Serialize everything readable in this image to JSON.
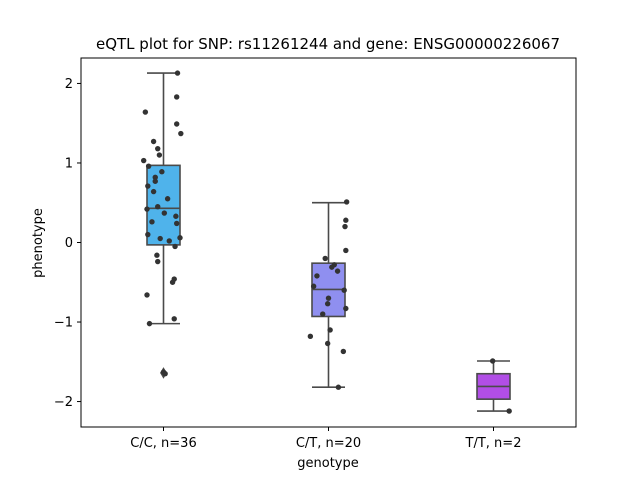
{
  "chart_data": {
    "type": "box",
    "title": "eQTL plot for SNP: rs11261244 and gene: ENSG00000226067",
    "xlabel": "genotype",
    "ylabel": "phenotype",
    "ylim": [
      -2.32,
      2.32
    ],
    "yticks": [
      2,
      1,
      0,
      -1,
      -2
    ],
    "ytick_labels": [
      "2",
      "1",
      "0",
      "−1",
      "−2"
    ],
    "grid": false,
    "categories": [
      "C/C, n=36",
      "C/T, n=20",
      "T/T, n=2"
    ],
    "colors": {
      "box_fills": [
        "#4fb3eb",
        "#8f8ff0",
        "#b14ee6"
      ],
      "box_edge": "#4a4a4a",
      "points": "#333333"
    },
    "boxes": [
      {
        "category": "C/C, n=36",
        "whisker_low": -1.02,
        "q1": -0.03,
        "median": 0.43,
        "q3": 0.97,
        "whisker_high": 2.13,
        "outliers": [
          -1.64
        ]
      },
      {
        "category": "C/T, n=20",
        "whisker_low": -1.82,
        "q1": -0.93,
        "median": -0.59,
        "q3": -0.26,
        "whisker_high": 0.5,
        "outliers": []
      },
      {
        "category": "T/T, n=2",
        "whisker_low": -2.12,
        "q1": -1.97,
        "median": -1.81,
        "q3": -1.65,
        "whisker_high": -1.49,
        "outliers": []
      }
    ],
    "points": [
      [
        [
          0.17,
          2.13
        ],
        [
          -0.22,
          1.64
        ],
        [
          0.16,
          1.83
        ],
        [
          0.16,
          1.49
        ],
        [
          0.21,
          1.37
        ],
        [
          -0.12,
          1.27
        ],
        [
          -0.07,
          1.18
        ],
        [
          -0.05,
          1.1
        ],
        [
          -0.24,
          1.03
        ],
        [
          -0.18,
          0.96
        ],
        [
          -0.02,
          0.89
        ],
        [
          -0.1,
          0.82
        ],
        [
          -0.1,
          0.77
        ],
        [
          -0.19,
          0.71
        ],
        [
          -0.12,
          0.64
        ],
        [
          0.05,
          0.55
        ],
        [
          -0.07,
          0.45
        ],
        [
          -0.2,
          0.42
        ],
        [
          0.01,
          0.37
        ],
        [
          0.15,
          0.33
        ],
        [
          -0.14,
          0.26
        ],
        [
          0.16,
          0.24
        ],
        [
          -0.19,
          0.1
        ],
        [
          0.2,
          0.06
        ],
        [
          -0.04,
          0.05
        ],
        [
          0.07,
          0.02
        ],
        [
          0.14,
          -0.05
        ],
        [
          -0.08,
          -0.16
        ],
        [
          -0.07,
          -0.24
        ],
        [
          0.13,
          -0.46
        ],
        [
          0.11,
          -0.5
        ],
        [
          -0.2,
          -0.66
        ],
        [
          0.13,
          -0.96
        ],
        [
          -0.17,
          -1.02
        ],
        [
          0.0,
          -1.63
        ],
        [
          0.02,
          -1.65
        ]
      ],
      [
        [
          0.22,
          0.51
        ],
        [
          0.21,
          0.28
        ],
        [
          0.2,
          0.2
        ],
        [
          0.21,
          -0.1
        ],
        [
          -0.04,
          -0.2
        ],
        [
          0.07,
          -0.28
        ],
        [
          0.04,
          -0.31
        ],
        [
          0.11,
          -0.36
        ],
        [
          -0.14,
          -0.42
        ],
        [
          -0.18,
          -0.55
        ],
        [
          0.19,
          -0.6
        ],
        [
          0.0,
          -0.7
        ],
        [
          -0.01,
          -0.77
        ],
        [
          0.21,
          -0.83
        ],
        [
          -0.07,
          -0.9
        ],
        [
          0.02,
          -1.1
        ],
        [
          -0.22,
          -1.18
        ],
        [
          -0.01,
          -1.27
        ],
        [
          0.18,
          -1.37
        ],
        [
          0.12,
          -1.82
        ]
      ],
      [
        [
          -0.01,
          -1.49
        ],
        [
          0.19,
          -2.12
        ]
      ]
    ]
  }
}
